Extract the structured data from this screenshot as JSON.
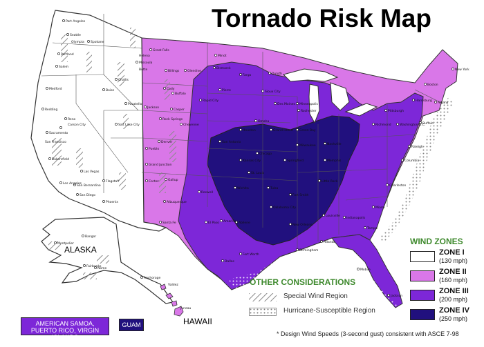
{
  "title": "Tornado Risk Map",
  "wind_zones": {
    "title": "WIND ZONES",
    "zones": [
      {
        "name": "ZONE I",
        "speed": "(130 mph)",
        "color": "#ffffff"
      },
      {
        "name": "ZONE II",
        "speed": "(160 mph)",
        "color": "#d977e8"
      },
      {
        "name": "ZONE III",
        "speed": "(200 mph)",
        "color": "#7d27d8"
      },
      {
        "name": "ZONE IV",
        "speed": "(250 mph)",
        "color": "#21107e"
      }
    ]
  },
  "other_considerations": {
    "title": "OTHER CONSIDERATIONS",
    "items": [
      "Special Wind Region",
      "Hurricane-Susceptible Region"
    ]
  },
  "insets": {
    "alaska": "ALASKA",
    "hawaii": "HAWAII",
    "territories": "AMERICAN SAMOA, PUERTO RICO, VIRGIN ISLANDS",
    "guam": "GUAM"
  },
  "footnote": "* Design Wind Speeds (3-second gust) consistent with ASCE 7-98",
  "cities": [
    "Port Angeles",
    "Seattle",
    "Olympia",
    "Spokane",
    "Portland",
    "Salem",
    "Medford",
    "Redding",
    "Sacramento",
    "San Francisco",
    "Reno",
    "Carson City",
    "Bakersfield",
    "Las Vegas",
    "Los Angeles",
    "San Bernardino",
    "San Diego",
    "Flagstaff",
    "Phoenix",
    "Boise",
    "Pocatello",
    "Challis",
    "Missoula",
    "Butte",
    "Helena",
    "Great Falls",
    "Billings",
    "Cody",
    "Jackson",
    "Salt Lake City",
    "Glendive",
    "Minot",
    "Bismarck",
    "Fargo",
    "Duluth",
    "Pierre",
    "Rapid City",
    "Buffalo",
    "Casper",
    "Rock Springs",
    "Cheyenne",
    "Denver",
    "Pueblo",
    "Grand Junction",
    "Cortez",
    "Gallup",
    "Albuquerque",
    "Santa Fe",
    "Roswell",
    "El Paso",
    "Amarillo",
    "Abilene",
    "Fort Worth",
    "Dallas",
    "Houston",
    "San Antonio",
    "Omaha",
    "Grand Island",
    "Sioux City",
    "Des Moines",
    "Minneapolis",
    "Rochester",
    "Green Bay",
    "Milwaukee",
    "Chicago",
    "Springfield",
    "Kansas City",
    "St. Louis",
    "Wichita",
    "Tulsa",
    "Oklahoma City",
    "Fort Smith",
    "Little Rock",
    "Memphis",
    "Nashville",
    "Louisville",
    "Indianapolis",
    "Birmingham",
    "Atlanta",
    "New Orleans",
    "Mobile",
    "Jackson",
    "Tampa",
    "Miami",
    "Charleston",
    "Columbia",
    "Raleigh",
    "Richmond",
    "Washington D.C.",
    "Pittsburgh",
    "Harrisburg",
    "Buffalo",
    "Albany",
    "New York",
    "Boston",
    "Bangor",
    "Montpelier",
    "Fairbanks",
    "Nome",
    "Anchorage",
    "Valdez",
    "Juneau",
    "Honolulu",
    "Hilo"
  ]
}
